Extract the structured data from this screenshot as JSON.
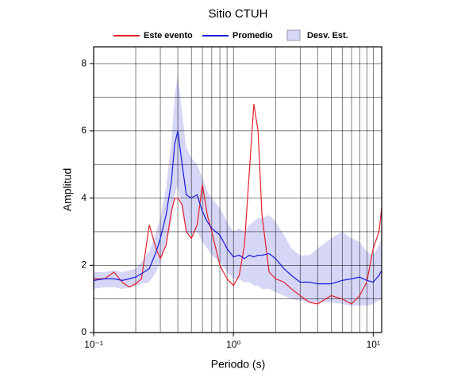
{
  "chart_data": {
    "type": "line",
    "title": "Sitio CTUH",
    "xlabel": "Periodo (s)",
    "ylabel": "Amplitud",
    "xscale": "log",
    "grid": true,
    "xlim": [
      0.1,
      11.5
    ],
    "ylim": [
      0,
      8.5
    ],
    "xticks": [
      {
        "value": 0.1,
        "label": "10⁻¹"
      },
      {
        "value": 1,
        "label": "10⁰"
      },
      {
        "value": 10,
        "label": "10¹"
      }
    ],
    "xminor": [
      0.2,
      0.3,
      0.4,
      0.5,
      0.6,
      0.7,
      0.8,
      0.9,
      2,
      3,
      4,
      5,
      6,
      7,
      8,
      9
    ],
    "yticks": [
      0,
      2,
      4,
      6,
      8
    ],
    "yminor": [
      1,
      3,
      5,
      7
    ],
    "x": [
      0.1,
      0.12,
      0.14,
      0.16,
      0.18,
      0.2,
      0.22,
      0.25,
      0.28,
      0.3,
      0.33,
      0.36,
      0.38,
      0.4,
      0.43,
      0.46,
      0.5,
      0.55,
      0.6,
      0.65,
      0.7,
      0.8,
      0.9,
      1.0,
      1.1,
      1.2,
      1.3,
      1.4,
      1.5,
      1.6,
      1.8,
      2.0,
      2.3,
      2.6,
      3.0,
      3.5,
      4.0,
      5.0,
      6.0,
      7.0,
      8.0,
      9.0,
      10,
      11,
      11.5
    ],
    "series": [
      {
        "name": "Este evento",
        "color": "#e8202a",
        "values": [
          1.6,
          1.6,
          1.8,
          1.5,
          1.35,
          1.45,
          1.6,
          3.2,
          2.5,
          2.2,
          2.6,
          3.6,
          4.0,
          4.0,
          3.8,
          3.0,
          2.8,
          3.2,
          4.4,
          3.5,
          3.0,
          2.0,
          1.6,
          1.4,
          1.7,
          2.6,
          4.8,
          6.8,
          6.0,
          3.5,
          1.8,
          1.6,
          1.5,
          1.3,
          1.1,
          0.9,
          0.85,
          1.1,
          1.0,
          0.85,
          1.1,
          1.5,
          2.5,
          3.0,
          3.7
        ]
      },
      {
        "name": "Promedio",
        "color": "#1a1adc",
        "values": [
          1.55,
          1.6,
          1.6,
          1.55,
          1.6,
          1.65,
          1.75,
          1.9,
          2.4,
          2.8,
          3.5,
          4.5,
          5.6,
          6.0,
          5.0,
          4.1,
          4.0,
          4.1,
          3.6,
          3.3,
          3.1,
          2.9,
          2.5,
          2.25,
          2.3,
          2.2,
          2.3,
          2.25,
          2.3,
          2.3,
          2.35,
          2.2,
          1.9,
          1.7,
          1.5,
          1.5,
          1.45,
          1.45,
          1.55,
          1.6,
          1.65,
          1.55,
          1.5,
          1.7,
          1.85
        ]
      },
      {
        "name": "Desv. Est.",
        "color": "#d6d6f7",
        "type": "band",
        "upper": [
          1.8,
          1.8,
          1.85,
          1.8,
          1.85,
          1.9,
          2.1,
          2.4,
          3.0,
          3.4,
          4.3,
          5.7,
          7.0,
          7.7,
          6.5,
          5.5,
          5.2,
          5.0,
          4.6,
          4.2,
          4.0,
          3.7,
          3.3,
          3.0,
          3.1,
          3.0,
          3.2,
          3.3,
          3.4,
          3.4,
          3.5,
          3.3,
          2.9,
          2.5,
          2.3,
          2.3,
          2.5,
          2.8,
          3.0,
          2.8,
          2.7,
          2.4,
          2.3,
          2.6,
          2.8
        ],
        "lower": [
          1.3,
          1.35,
          1.35,
          1.3,
          1.35,
          1.4,
          1.45,
          1.5,
          1.8,
          2.1,
          2.6,
          3.3,
          4.1,
          4.4,
          3.6,
          3.0,
          2.9,
          3.0,
          2.7,
          2.5,
          2.3,
          2.1,
          1.8,
          1.6,
          1.6,
          1.5,
          1.5,
          1.4,
          1.4,
          1.3,
          1.3,
          1.2,
          1.1,
          1.0,
          0.95,
          0.9,
          0.9,
          0.9,
          0.85,
          0.8,
          0.8,
          0.8,
          0.85,
          0.95,
          1.0
        ]
      }
    ]
  }
}
